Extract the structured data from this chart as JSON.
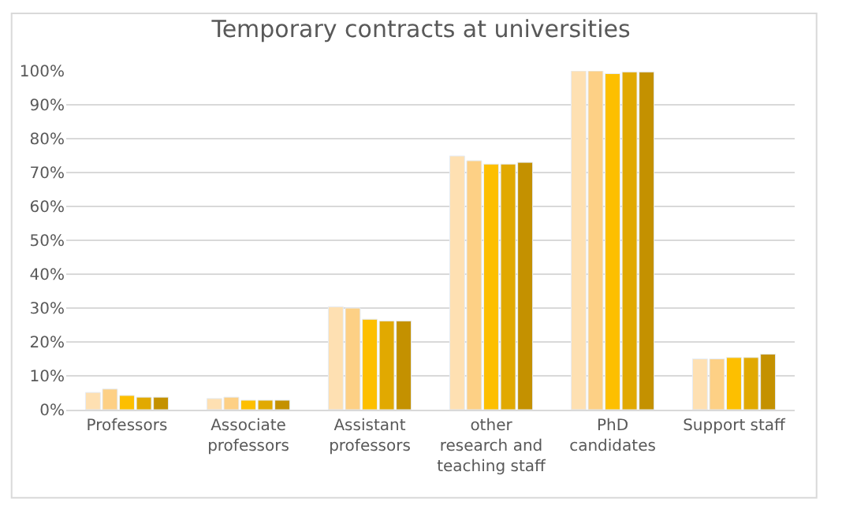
{
  "chart_data": {
    "type": "bar",
    "title": "Temporary contracts at universities",
    "categories": [
      "Professors",
      "Associate\nprofessors",
      "Assistant\nprofessors",
      "other\nresearch and\nteaching staff",
      "PhD\ncandidates",
      "Support staff"
    ],
    "series": [
      {
        "color": "#fee0b2",
        "values": [
          5.1,
          3.3,
          30.4,
          74.9,
          100,
          15.0
        ]
      },
      {
        "color": "#fdd085",
        "values": [
          6.1,
          3.7,
          30.0,
          73.5,
          100,
          15.0
        ]
      },
      {
        "color": "#fdbf00",
        "values": [
          4.2,
          2.8,
          26.7,
          72.5,
          99.2,
          15.4
        ]
      },
      {
        "color": "#e1a901",
        "values": [
          3.7,
          2.8,
          26.2,
          72.5,
          99.7,
          15.4
        ]
      },
      {
        "color": "#c49100",
        "values": [
          3.7,
          2.8,
          26.2,
          73.0,
          99.7,
          16.4
        ]
      }
    ],
    "ylim": [
      0,
      100
    ],
    "yticks": [
      {
        "value": 0,
        "label": "0%"
      },
      {
        "value": 10,
        "label": "10%"
      },
      {
        "value": 20,
        "label": "20%"
      },
      {
        "value": 30,
        "label": "30%"
      },
      {
        "value": 40,
        "label": "40%"
      },
      {
        "value": 50,
        "label": "50%"
      },
      {
        "value": 60,
        "label": "60%"
      },
      {
        "value": 70,
        "label": "70%"
      },
      {
        "value": 80,
        "label": "80%"
      },
      {
        "value": 90,
        "label": "90%"
      },
      {
        "value": 100,
        "label": "100%"
      }
    ],
    "grid": "y"
  }
}
